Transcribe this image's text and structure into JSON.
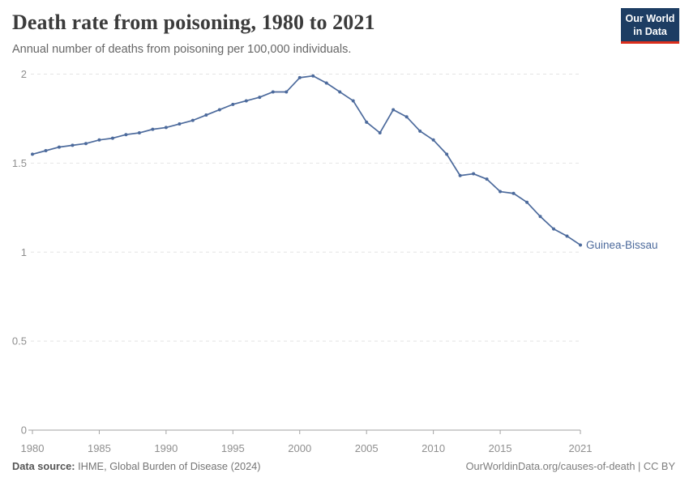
{
  "header": {
    "title": "Death rate from poisoning, 1980 to 2021",
    "subtitle": "Annual number of deaths from poisoning per 100,000 individuals."
  },
  "logo": {
    "line1": "Our World",
    "line2": "in Data"
  },
  "footer": {
    "source_label": "Data source:",
    "source_text": " IHME, Global Burden of Disease (2024)",
    "credit": "OurWorldinData.org/causes-of-death | CC BY"
  },
  "colors": {
    "series_blue": "#4C6A9C",
    "grid": "#e4e4e4",
    "axis": "#a2a2a2",
    "tick_text": "#8f8f8f",
    "title_text": "#3b3b3b",
    "subtitle_text": "#666666",
    "logo_bg": "#1d3d63",
    "logo_red": "#dc2e1c"
  },
  "chart_data": {
    "type": "line",
    "title": "Death rate from poisoning, 1980 to 2021",
    "subtitle": "Annual number of deaths from poisoning per 100,000 individuals.",
    "xlabel": "",
    "ylabel": "",
    "xlim": [
      1980,
      2021
    ],
    "ylim": [
      0,
      2
    ],
    "grid": "horizontal dashed",
    "legend": "end-of-line label",
    "x_ticks": [
      1980,
      1985,
      1990,
      1995,
      2000,
      2005,
      2010,
      2015,
      2021
    ],
    "y_ticks": [
      0,
      0.5,
      1,
      1.5,
      2
    ],
    "y_tick_labels": [
      "0",
      "0.5",
      "1",
      "1.5",
      "2"
    ],
    "x": [
      1980,
      1981,
      1982,
      1983,
      1984,
      1985,
      1986,
      1987,
      1988,
      1989,
      1990,
      1991,
      1992,
      1993,
      1994,
      1995,
      1996,
      1997,
      1998,
      1999,
      2000,
      2001,
      2002,
      2003,
      2004,
      2005,
      2006,
      2007,
      2008,
      2009,
      2010,
      2011,
      2012,
      2013,
      2014,
      2015,
      2016,
      2017,
      2018,
      2019,
      2020,
      2021
    ],
    "series": [
      {
        "name": "Guinea-Bissau",
        "color": "#4C6A9C",
        "values": [
          1.55,
          1.57,
          1.59,
          1.6,
          1.61,
          1.63,
          1.64,
          1.66,
          1.67,
          1.69,
          1.7,
          1.72,
          1.74,
          1.77,
          1.8,
          1.83,
          1.85,
          1.87,
          1.9,
          1.9,
          1.98,
          1.99,
          1.95,
          1.9,
          1.85,
          1.73,
          1.67,
          1.8,
          1.76,
          1.68,
          1.63,
          1.55,
          1.43,
          1.44,
          1.41,
          1.34,
          1.33,
          1.28,
          1.2,
          1.13,
          1.09,
          1.04
        ]
      }
    ]
  }
}
